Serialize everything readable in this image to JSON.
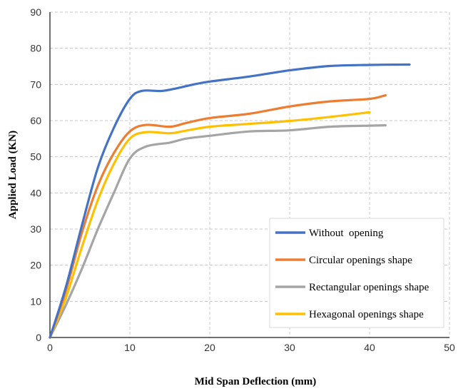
{
  "chart_data": {
    "type": "line",
    "title": "",
    "xlabel": "Mid Span Deflection (mm)",
    "ylabel": "Applied Load (KN)",
    "xlim": [
      0,
      50
    ],
    "ylim": [
      0,
      90
    ],
    "xticks": [
      0,
      10,
      20,
      30,
      40,
      50
    ],
    "yticks": [
      0,
      10,
      20,
      30,
      40,
      50,
      60,
      70,
      80,
      90
    ],
    "grid": "dashed",
    "legend_position": "lower-right",
    "series": [
      {
        "name": "Without  opening",
        "color": "#4472C4",
        "points": [
          [
            0,
            0
          ],
          [
            2,
            14
          ],
          [
            4,
            31
          ],
          [
            6,
            47
          ],
          [
            8,
            58
          ],
          [
            10,
            66
          ],
          [
            11.5,
            68.2
          ],
          [
            14,
            68.2
          ],
          [
            16,
            69
          ],
          [
            18,
            70
          ],
          [
            20,
            70.8
          ],
          [
            25,
            72.2
          ],
          [
            30,
            73.9
          ],
          [
            35,
            75.1
          ],
          [
            40,
            75.4
          ],
          [
            45,
            75.5
          ]
        ]
      },
      {
        "name": "Circular openings shape",
        "color": "#ED7D31",
        "points": [
          [
            0,
            0
          ],
          [
            2,
            13
          ],
          [
            4,
            29
          ],
          [
            6,
            42
          ],
          [
            8,
            51
          ],
          [
            10,
            57
          ],
          [
            12,
            58.8
          ],
          [
            15,
            58.3
          ],
          [
            17,
            59.3
          ],
          [
            20,
            60.7
          ],
          [
            25,
            61.9
          ],
          [
            30,
            63.9
          ],
          [
            35,
            65.3
          ],
          [
            40,
            66
          ],
          [
            42,
            67
          ]
        ]
      },
      {
        "name": "Rectangular openings shape",
        "color": "#A5A5A5",
        "points": [
          [
            0,
            0
          ],
          [
            2,
            9
          ],
          [
            4,
            19
          ],
          [
            6,
            30
          ],
          [
            8,
            40
          ],
          [
            10,
            49.5
          ],
          [
            12,
            52.8
          ],
          [
            15,
            53.9
          ],
          [
            17,
            55
          ],
          [
            20,
            55.8
          ],
          [
            25,
            57
          ],
          [
            30,
            57.3
          ],
          [
            35,
            58.3
          ],
          [
            40,
            58.6
          ],
          [
            42,
            58.7
          ]
        ]
      },
      {
        "name": "Hexagonal openings shape",
        "color": "#FFC000",
        "points": [
          [
            0,
            0
          ],
          [
            2,
            11
          ],
          [
            4,
            25
          ],
          [
            6,
            38
          ],
          [
            8,
            48
          ],
          [
            10,
            55
          ],
          [
            12,
            56.8
          ],
          [
            15,
            56.5
          ],
          [
            17,
            57.2
          ],
          [
            20,
            58.3
          ],
          [
            25,
            59.1
          ],
          [
            30,
            59.9
          ],
          [
            35,
            61
          ],
          [
            40,
            62.3
          ]
        ]
      }
    ]
  }
}
